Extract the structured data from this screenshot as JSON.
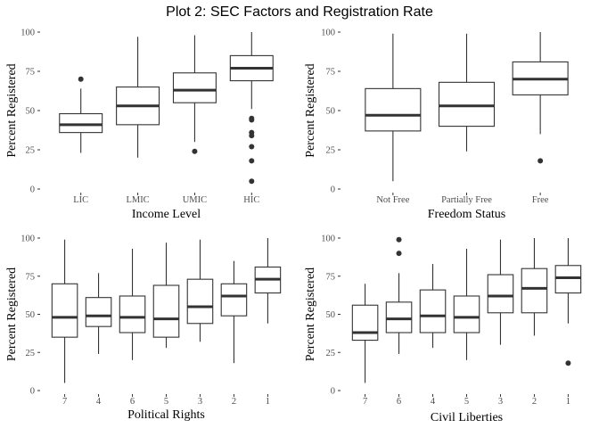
{
  "title": "Plot 2: SEC Factors and Registration Rate",
  "chart_data": [
    {
      "type": "box",
      "xlabel": "Income Level",
      "ylabel": "Percent Registered",
      "ylim": [
        0,
        100
      ],
      "yticks": [
        0,
        25,
        50,
        75,
        100
      ],
      "grid": false,
      "categories": [
        "LIC",
        "LMIC",
        "UMIC",
        "HIC"
      ],
      "boxes": [
        {
          "category": "LIC",
          "whisker_low": 23,
          "q1": 36,
          "median": 41,
          "q3": 48,
          "whisker_high": 64,
          "outliers": [
            70
          ]
        },
        {
          "category": "LMIC",
          "whisker_low": 20,
          "q1": 41,
          "median": 53,
          "q3": 65,
          "whisker_high": 97,
          "outliers": []
        },
        {
          "category": "UMIC",
          "whisker_low": 30,
          "q1": 55,
          "median": 63,
          "q3": 74,
          "whisker_high": 98,
          "outliers": [
            24
          ]
        },
        {
          "category": "HIC",
          "whisker_low": 51,
          "q1": 69,
          "median": 77,
          "q3": 85,
          "whisker_high": 100,
          "outliers": [
            45,
            44,
            36,
            34,
            27,
            18,
            5
          ]
        }
      ]
    },
    {
      "type": "box",
      "xlabel": "Freedom Status",
      "ylabel": "Percent Registered",
      "ylim": [
        0,
        100
      ],
      "yticks": [
        0,
        25,
        50,
        75,
        100
      ],
      "grid": false,
      "categories": [
        "Not Free",
        "Partially Free",
        "Free"
      ],
      "boxes": [
        {
          "category": "Not Free",
          "whisker_low": 5,
          "q1": 37,
          "median": 47,
          "q3": 64,
          "whisker_high": 99,
          "outliers": []
        },
        {
          "category": "Partially Free",
          "whisker_low": 24,
          "q1": 40,
          "median": 53,
          "q3": 68,
          "whisker_high": 99,
          "outliers": []
        },
        {
          "category": "Free",
          "whisker_low": 35,
          "q1": 60,
          "median": 70,
          "q3": 81,
          "whisker_high": 100,
          "outliers": [
            18
          ]
        }
      ]
    },
    {
      "type": "box",
      "xlabel": "Political Rights",
      "ylabel": "Percent Registered",
      "ylim": [
        0,
        100
      ],
      "yticks": [
        0,
        25,
        50,
        75,
        100
      ],
      "grid": false,
      "categories": [
        "7",
        "4",
        "6",
        "5",
        "3",
        "2",
        "1"
      ],
      "boxes": [
        {
          "category": "7",
          "whisker_low": 5,
          "q1": 35,
          "median": 48,
          "q3": 70,
          "whisker_high": 99,
          "outliers": []
        },
        {
          "category": "4",
          "whisker_low": 24,
          "q1": 42,
          "median": 49,
          "q3": 61,
          "whisker_high": 77,
          "outliers": []
        },
        {
          "category": "6",
          "whisker_low": 20,
          "q1": 38,
          "median": 48,
          "q3": 62,
          "whisker_high": 93,
          "outliers": []
        },
        {
          "category": "5",
          "whisker_low": 28,
          "q1": 35,
          "median": 47,
          "q3": 69,
          "whisker_high": 97,
          "outliers": []
        },
        {
          "category": "3",
          "whisker_low": 32,
          "q1": 44,
          "median": 55,
          "q3": 73,
          "whisker_high": 99,
          "outliers": []
        },
        {
          "category": "2",
          "whisker_low": 18,
          "q1": 49,
          "median": 62,
          "q3": 70,
          "whisker_high": 85,
          "outliers": []
        },
        {
          "category": "1",
          "whisker_low": 44,
          "q1": 64,
          "median": 73,
          "q3": 81,
          "whisker_high": 100,
          "outliers": []
        }
      ]
    },
    {
      "type": "box",
      "xlabel": "Civil Liberties",
      "ylabel": "Percent Registered",
      "ylim": [
        0,
        100
      ],
      "yticks": [
        0,
        25,
        50,
        75,
        100
      ],
      "grid": false,
      "categories": [
        "7",
        "6",
        "4",
        "5",
        "3",
        "2",
        "1"
      ],
      "boxes": [
        {
          "category": "7",
          "whisker_low": 5,
          "q1": 33,
          "median": 38,
          "q3": 56,
          "whisker_high": 70,
          "outliers": []
        },
        {
          "category": "6",
          "whisker_low": 24,
          "q1": 38,
          "median": 47,
          "q3": 58,
          "whisker_high": 77,
          "outliers": [
            99,
            90
          ]
        },
        {
          "category": "4",
          "whisker_low": 28,
          "q1": 38,
          "median": 49,
          "q3": 66,
          "whisker_high": 83,
          "outliers": []
        },
        {
          "category": "5",
          "whisker_low": 20,
          "q1": 38,
          "median": 48,
          "q3": 62,
          "whisker_high": 93,
          "outliers": []
        },
        {
          "category": "3",
          "whisker_low": 30,
          "q1": 51,
          "median": 62,
          "q3": 76,
          "whisker_high": 99,
          "outliers": []
        },
        {
          "category": "2",
          "whisker_low": 36,
          "q1": 51,
          "median": 67,
          "q3": 80,
          "whisker_high": 100,
          "outliers": []
        },
        {
          "category": "1",
          "whisker_low": 44,
          "q1": 64,
          "median": 74,
          "q3": 82,
          "whisker_high": 100,
          "outliers": [
            18
          ]
        }
      ]
    }
  ]
}
